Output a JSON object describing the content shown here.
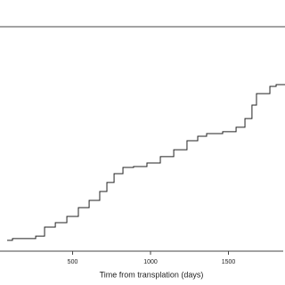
{
  "chart_data": {
    "type": "step",
    "x_label": "Time from transplation (days)",
    "x": [
      80,
      114,
      263,
      320,
      389,
      463,
      537,
      606,
      674,
      720,
      766,
      823,
      891,
      977,
      1063,
      1149,
      1234,
      1303,
      1360,
      1463,
      1549,
      1606,
      1651,
      1680,
      1766,
      1806,
      1851
    ],
    "series": [
      {
        "color": "#222222",
        "values": [
          0.048,
          0.056,
          0.067,
          0.107,
          0.127,
          0.155,
          0.194,
          0.226,
          0.266,
          0.306,
          0.345,
          0.373,
          0.377,
          0.393,
          0.421,
          0.452,
          0.492,
          0.512,
          0.524,
          0.532,
          0.552,
          0.591,
          0.651,
          0.702,
          0.734,
          0.742,
          0.742
        ]
      }
    ],
    "xlim": [
      34,
      1863
    ],
    "ylim": [
      0,
      1
    ],
    "xticks": [
      500,
      1000,
      1500
    ]
  }
}
